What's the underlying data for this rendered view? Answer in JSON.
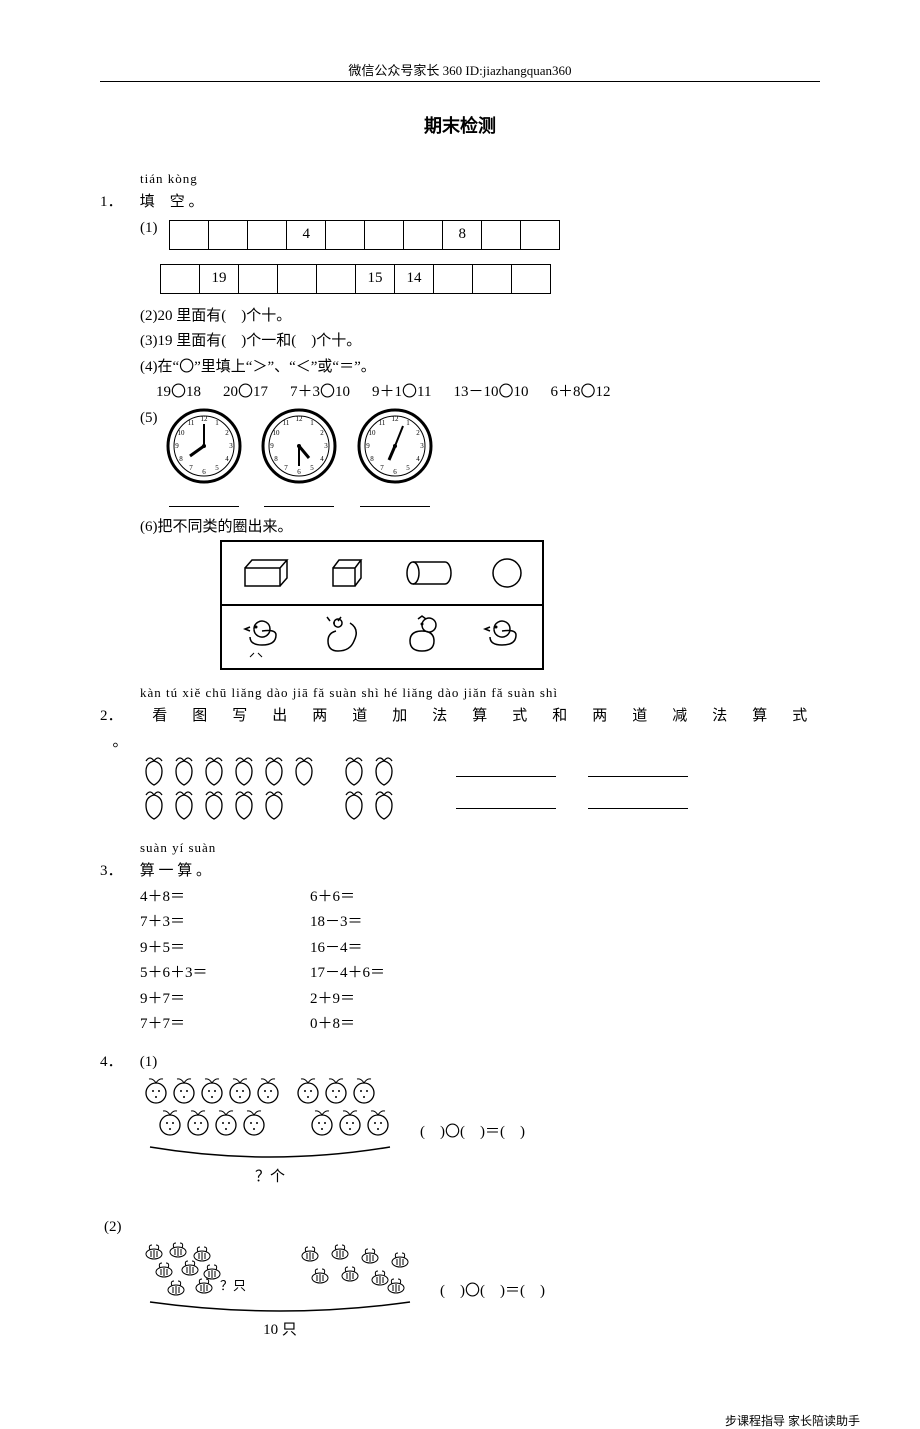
{
  "header": "微信公众号家长 360 ID:jiazhangquan360",
  "title": "期末检测",
  "q1": {
    "pinyin": "tián kòng",
    "label": "填　空 。",
    "row1": [
      "",
      "",
      "",
      "4",
      "",
      "",
      "",
      "8",
      "",
      ""
    ],
    "row2": [
      "",
      "19",
      "",
      "",
      "",
      "15",
      "14",
      "",
      "",
      ""
    ],
    "s2": "(2)20 里面有(　)个十。",
    "s3": "(3)19 里面有(　)个一和(　)个十。",
    "s4": "(4)在“〇”里填上“＞”、“＜”或“＝”。",
    "comp": [
      "19〇18",
      "20〇17",
      "7＋3〇10",
      "9＋1〇11",
      "13－10〇10",
      "6＋8〇12"
    ],
    "s5": "(5)",
    "s6": "(6)把不同类的圈出来。"
  },
  "q2": {
    "pinyin": "kàn tú xiě chū liǎng dào jiā fǎ suàn shì hé liǎng dào jiǎn fǎ suàn shì",
    "chars": [
      "看",
      "图",
      "写",
      "出",
      "两",
      "道",
      "加",
      "法",
      "算",
      "式",
      "和",
      "两",
      "道",
      "减",
      "法",
      "算",
      "式",
      "。"
    ]
  },
  "q3": {
    "pinyin": "suàn yí suàn",
    "label": "算  一  算 。",
    "rows": [
      [
        "4＋8＝",
        "6＋6＝"
      ],
      [
        "7＋3＝",
        "18－3＝"
      ],
      [
        "9＋5＝",
        "16－4＝"
      ],
      [
        "5＋6＋3＝",
        "17－4＋6＝"
      ],
      [
        "9＋7＝",
        "2＋9＝"
      ],
      [
        "7＋7＝",
        "0＋8＝"
      ]
    ]
  },
  "q4": {
    "eq": "(　)〇(　)＝(　)",
    "u1": "？个",
    "u2_a": "？只",
    "u2_b": "10 只"
  },
  "footer": "步课程指导 家长陪读助手"
}
